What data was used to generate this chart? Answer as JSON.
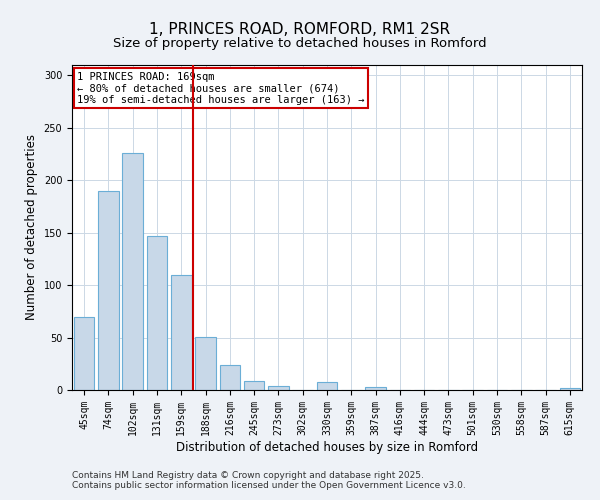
{
  "title": "1, PRINCES ROAD, ROMFORD, RM1 2SR",
  "subtitle": "Size of property relative to detached houses in Romford",
  "xlabel": "Distribution of detached houses by size in Romford",
  "ylabel": "Number of detached properties",
  "categories": [
    "45sqm",
    "74sqm",
    "102sqm",
    "131sqm",
    "159sqm",
    "188sqm",
    "216sqm",
    "245sqm",
    "273sqm",
    "302sqm",
    "330sqm",
    "359sqm",
    "387sqm",
    "416sqm",
    "444sqm",
    "473sqm",
    "501sqm",
    "530sqm",
    "558sqm",
    "587sqm",
    "615sqm"
  ],
  "values": [
    70,
    190,
    226,
    147,
    110,
    51,
    24,
    9,
    4,
    0,
    8,
    0,
    3,
    0,
    0,
    0,
    0,
    0,
    0,
    0,
    2
  ],
  "bar_color": "#c8d8e8",
  "bar_edge_color": "#6baed6",
  "vline_x": 4.5,
  "vline_color": "#cc0000",
  "annotation_title": "1 PRINCES ROAD: 169sqm",
  "annotation_line1": "← 80% of detached houses are smaller (674)",
  "annotation_line2": "19% of semi-detached houses are larger (163) →",
  "annotation_box_color": "#ffffff",
  "annotation_box_edge_color": "#cc0000",
  "ylim": [
    0,
    310
  ],
  "yticks": [
    0,
    50,
    100,
    150,
    200,
    250,
    300
  ],
  "footer1": "Contains HM Land Registry data © Crown copyright and database right 2025.",
  "footer2": "Contains public sector information licensed under the Open Government Licence v3.0.",
  "bg_color": "#eef2f7",
  "plot_bg_color": "#ffffff",
  "grid_color": "#ccd8e5",
  "title_fontsize": 11,
  "subtitle_fontsize": 9.5,
  "tick_fontsize": 7,
  "label_fontsize": 8.5,
  "annotation_fontsize": 7.5,
  "footer_fontsize": 6.5
}
